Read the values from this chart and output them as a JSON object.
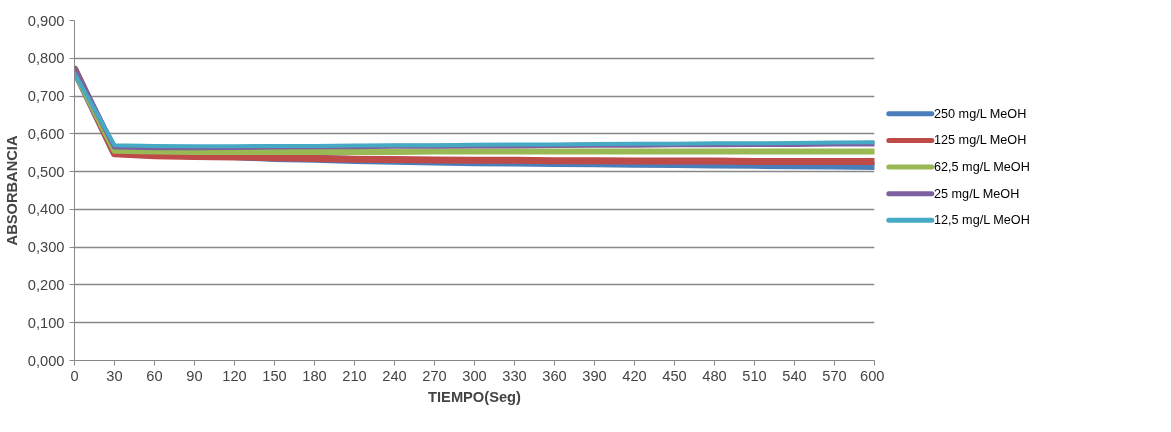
{
  "chart_data": {
    "type": "line",
    "xlabel": "TIEMPO(Seg)",
    "ylabel": "ABSORBANCIA",
    "x": [
      0,
      30,
      60,
      90,
      120,
      150,
      180,
      210,
      240,
      270,
      300,
      330,
      360,
      390,
      420,
      450,
      480,
      510,
      540,
      570,
      600
    ],
    "xlim": [
      0,
      600
    ],
    "xticks": [
      0,
      30,
      60,
      90,
      120,
      150,
      180,
      210,
      240,
      270,
      300,
      330,
      360,
      390,
      420,
      450,
      480,
      510,
      540,
      570,
      600
    ],
    "ylim": [
      0,
      0.9
    ],
    "yticks": [
      {
        "value": 0,
        "label": "0,000"
      },
      {
        "value": 0.1,
        "label": "0,100"
      },
      {
        "value": 0.2,
        "label": "0,200"
      },
      {
        "value": 0.3,
        "label": "0,300"
      },
      {
        "value": 0.4,
        "label": "0,400"
      },
      {
        "value": 0.5,
        "label": "0,500"
      },
      {
        "value": 0.6,
        "label": "0,600"
      },
      {
        "value": 0.7,
        "label": "0,700"
      },
      {
        "value": 0.8,
        "label": "0,800"
      },
      {
        "value": 0.9,
        "label": "0,900"
      }
    ],
    "grid": "y",
    "legend": "right",
    "marker": "none",
    "line_style": "solid",
    "series": [
      {
        "name": "250 mg/L MeOH",
        "color": "#4a7ebb",
        "values": [
          0.77,
          0.55,
          0.545,
          0.543,
          0.541,
          0.536,
          0.534,
          0.531,
          0.529,
          0.527,
          0.525,
          0.524,
          0.523,
          0.522,
          0.521,
          0.52,
          0.519,
          0.518,
          0.517,
          0.516,
          0.515
        ]
      },
      {
        "name": "125 mg/L MeOH",
        "color": "#be4b48",
        "values": [
          0.77,
          0.547,
          0.542,
          0.54,
          0.539,
          0.537,
          0.535,
          0.533,
          0.532,
          0.531,
          0.53,
          0.53,
          0.529,
          0.529,
          0.528,
          0.528,
          0.528,
          0.527,
          0.527,
          0.527,
          0.527
        ]
      },
      {
        "name": "62,5 mg/L MeOH",
        "color": "#98b954",
        "values": [
          0.765,
          0.555,
          0.553,
          0.552,
          0.552,
          0.552,
          0.552,
          0.552,
          0.552,
          0.553,
          0.553,
          0.553,
          0.553,
          0.553,
          0.553,
          0.553,
          0.553,
          0.553,
          0.553,
          0.553,
          0.553
        ]
      },
      {
        "name": "25 mg/L MeOH",
        "color": "#7d60a0",
        "values": [
          0.77,
          0.565,
          0.563,
          0.563,
          0.564,
          0.565,
          0.566,
          0.566,
          0.567,
          0.567,
          0.568,
          0.568,
          0.569,
          0.57,
          0.57,
          0.571,
          0.571,
          0.572,
          0.572,
          0.573,
          0.573
        ]
      },
      {
        "name": "12,5 mg/L MeOH",
        "color": "#46aac5",
        "values": [
          0.76,
          0.57,
          0.568,
          0.567,
          0.567,
          0.568,
          0.568,
          0.569,
          0.57,
          0.57,
          0.571,
          0.572,
          0.572,
          0.573,
          0.574,
          0.574,
          0.575,
          0.575,
          0.576,
          0.577,
          0.578
        ]
      }
    ]
  }
}
